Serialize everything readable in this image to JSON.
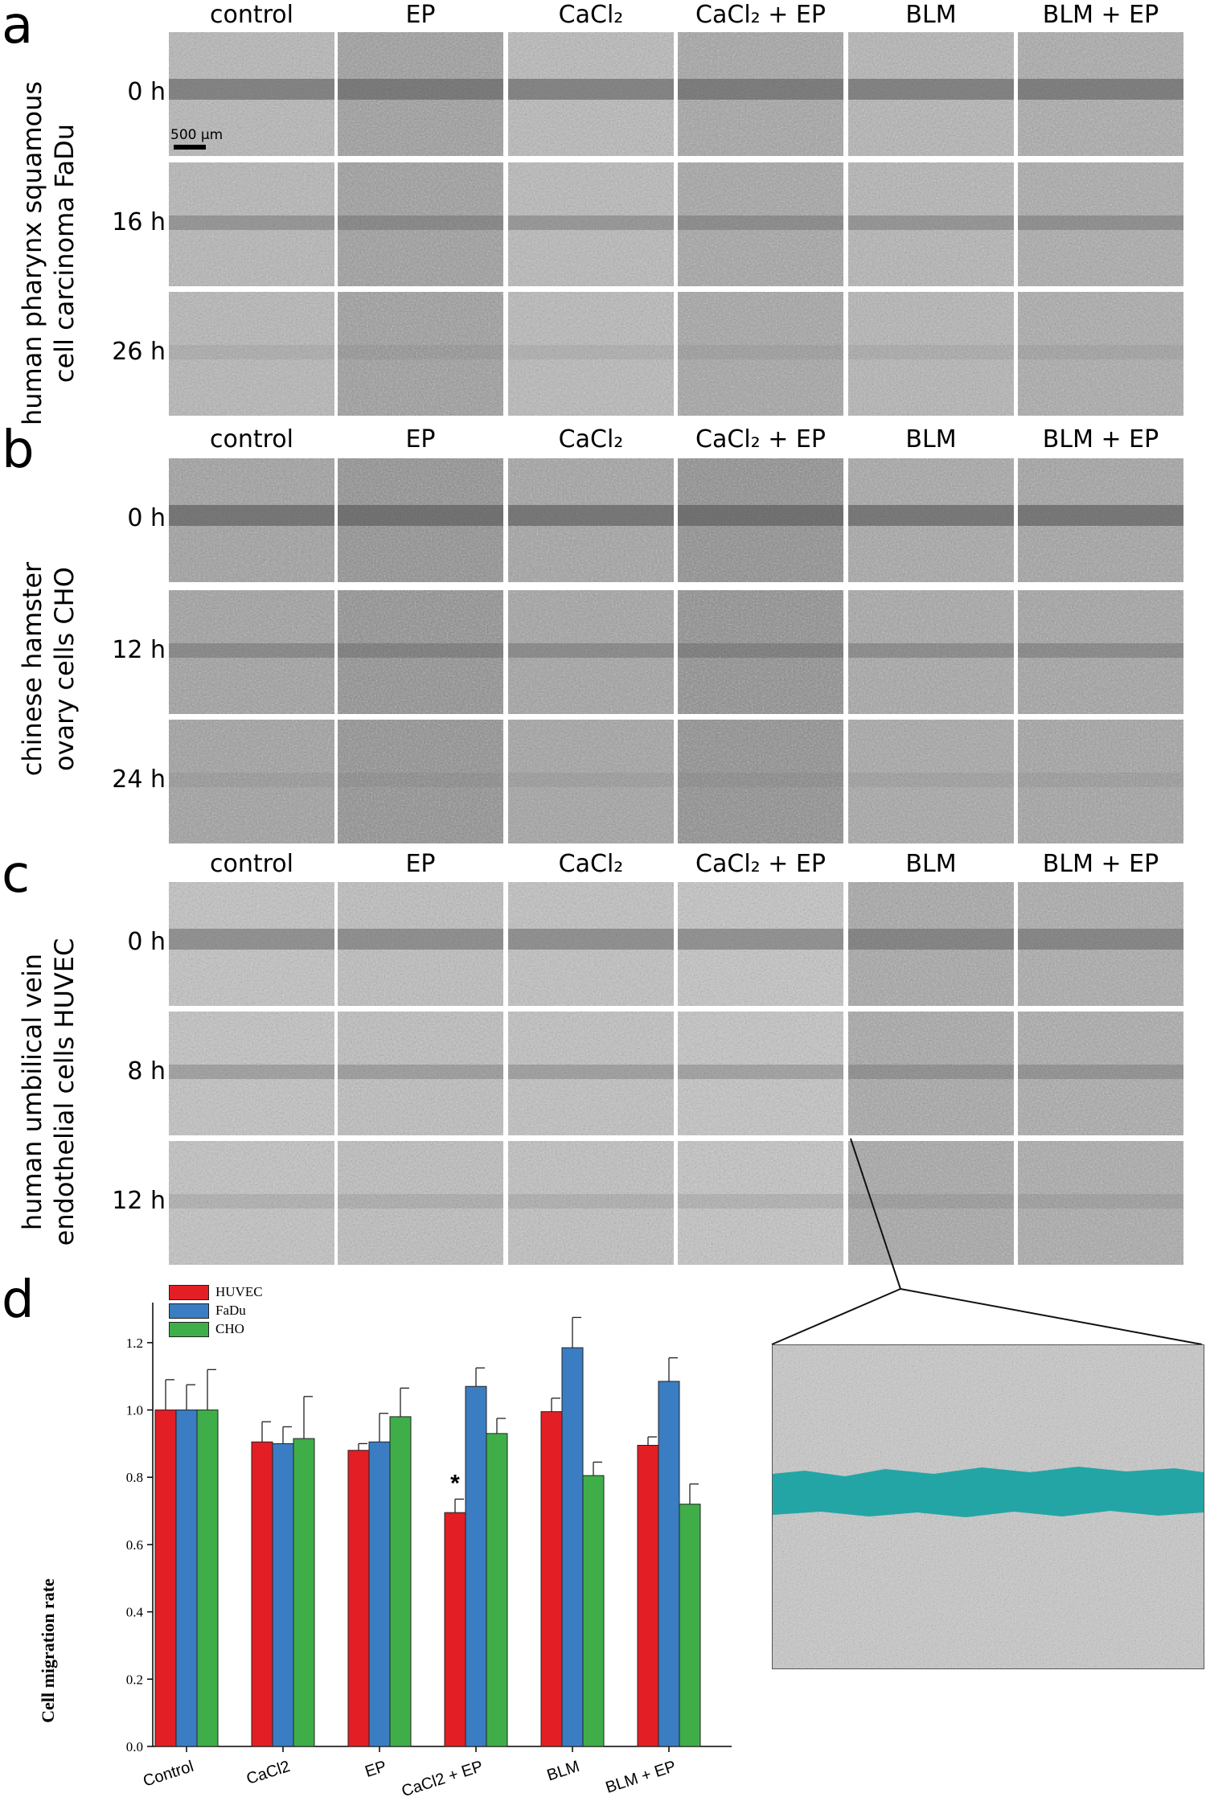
{
  "figure": {
    "panels": [
      {
        "letter": "a",
        "side_label_line1": "human pharynx squamous",
        "side_label_line2": "cell carcinoma FaDu",
        "columns": [
          "control",
          "EP",
          "CaCl₂",
          "CaCl₂ + EP",
          "BLM",
          "BLM + EP"
        ],
        "rows": [
          "0 h",
          "16 h",
          "26 h"
        ],
        "scale_bar": "500 µm"
      },
      {
        "letter": "b",
        "side_label_line1": "chinese hamster",
        "side_label_line2": "ovary cells CHO",
        "columns": [
          "control",
          "EP",
          "CaCl₂",
          "CaCl₂ + EP",
          "BLM",
          "BLM + EP"
        ],
        "rows": [
          "0 h",
          "12 h",
          "24 h"
        ]
      },
      {
        "letter": "c",
        "side_label_line1": "human umbilical vein",
        "side_label_line2": "endothelial cells HUVEC",
        "columns": [
          "control",
          "EP",
          "CaCl₂",
          "CaCl₂ + EP",
          "BLM",
          "BLM + EP"
        ],
        "rows": [
          "0 h",
          "8 h",
          "12 h"
        ]
      },
      {
        "letter": "d"
      }
    ]
  },
  "colors": {
    "HUVEC": "#e31e24",
    "FaDu": "#3a7dc2",
    "CHO": "#3fae49",
    "wound_highlight": "#1aa3a3"
  },
  "chart_data": {
    "type": "bar",
    "title": "",
    "xlabel": "",
    "ylabel": "Cell migration rate",
    "ylim": [
      0,
      1.3
    ],
    "yticks": [
      "0.0",
      "0.2",
      "0.4",
      "0.6",
      "0.8",
      "1.0",
      "1.2"
    ],
    "categories": [
      "Control",
      "CaCl2",
      "EP",
      "CaCl2 + EP",
      "BLM",
      "BLM + EP"
    ],
    "series": [
      {
        "name": "HUVEC",
        "values": [
          1.0,
          0.905,
          0.88,
          0.695,
          0.995,
          0.895
        ],
        "errors": [
          0.09,
          0.06,
          0.02,
          0.04,
          0.04,
          0.025
        ]
      },
      {
        "name": "FaDu",
        "values": [
          1.0,
          0.9,
          0.905,
          1.07,
          1.185,
          1.085
        ],
        "errors": [
          0.075,
          0.05,
          0.085,
          0.055,
          0.09,
          0.07
        ]
      },
      {
        "name": "CHO",
        "values": [
          1.0,
          0.915,
          0.98,
          0.93,
          0.805,
          0.72
        ],
        "errors": [
          0.12,
          0.125,
          0.085,
          0.045,
          0.04,
          0.06
        ]
      }
    ],
    "annotations": [
      {
        "category": "CaCl2 + EP",
        "series": "HUVEC",
        "text": "*"
      }
    ],
    "legend_placement": "top-left",
    "grid": false
  }
}
